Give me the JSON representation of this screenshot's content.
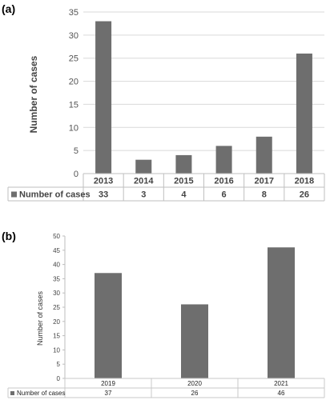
{
  "panels": {
    "a": {
      "label": "(a)"
    },
    "b": {
      "label": "(b)"
    }
  },
  "chart_data": [
    {
      "type": "bar",
      "categories": [
        "2013",
        "2014",
        "2015",
        "2016",
        "2017",
        "2018"
      ],
      "series": [
        {
          "name": "Number of cases",
          "values": [
            33,
            3,
            4,
            6,
            8,
            26
          ]
        }
      ],
      "ylabel": "Number of cases",
      "ylim": [
        0,
        35
      ],
      "yticks": [
        0,
        5,
        10,
        15,
        20,
        25,
        30,
        35
      ],
      "grid": true,
      "data_table": true,
      "bar_color": "#6e6e6e"
    },
    {
      "type": "bar",
      "categories": [
        "2019",
        "2020",
        "2021"
      ],
      "series": [
        {
          "name": "Number of cases",
          "values": [
            37,
            26,
            46
          ]
        }
      ],
      "ylabel": "Number of cases",
      "ylim": [
        0,
        50
      ],
      "yticks": [
        0,
        5,
        10,
        15,
        20,
        25,
        30,
        35,
        40,
        45,
        50
      ],
      "grid": false,
      "data_table": true,
      "bar_color": "#6e6e6e"
    }
  ]
}
